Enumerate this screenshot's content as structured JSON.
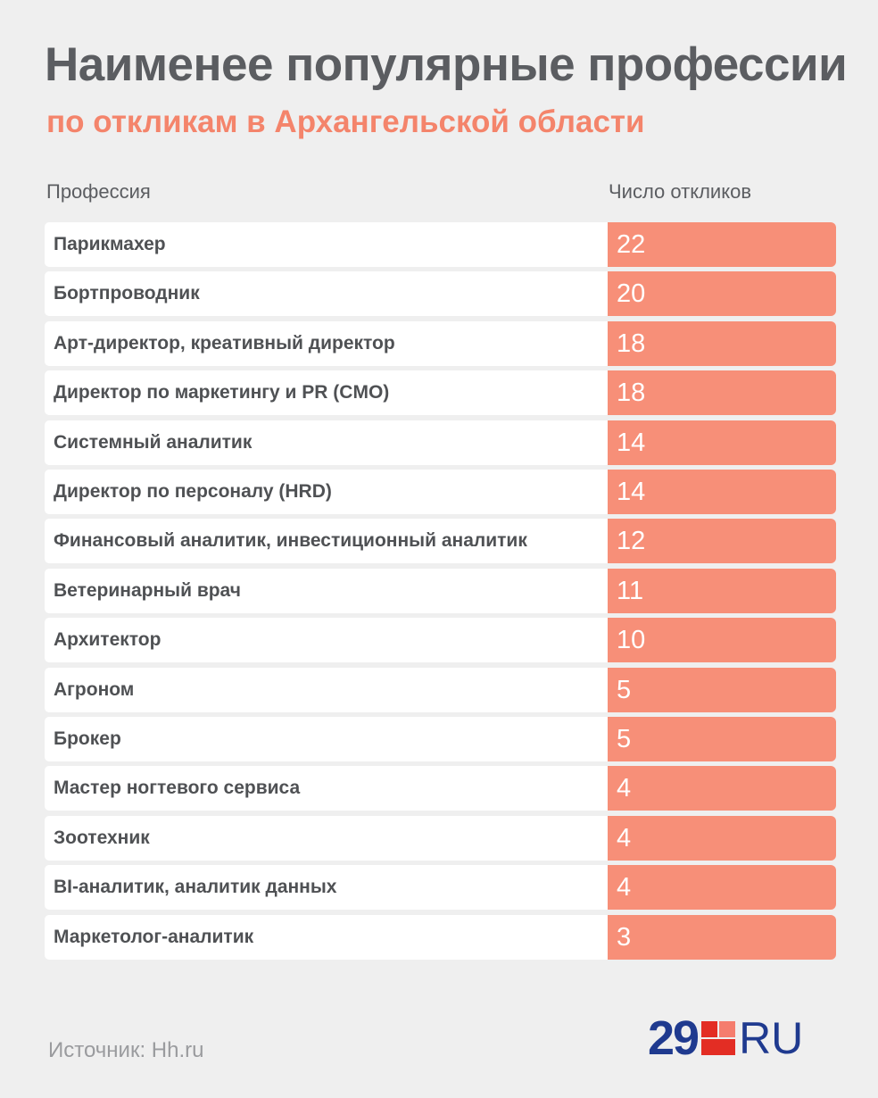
{
  "chart_data": {
    "type": "table",
    "title": "Наименее популярные профессии",
    "subtitle": "по откликам в Архангельской области",
    "columns": [
      "Профессия",
      "Число откликов"
    ],
    "rows": [
      {
        "label": "Парикмахер",
        "value": 22
      },
      {
        "label": "Бортпроводник",
        "value": 20
      },
      {
        "label": "Арт-директор, креативный директор",
        "value": 18
      },
      {
        "label": "Директор по маркетингу и PR (CMO)",
        "value": 18
      },
      {
        "label": "Системный аналитик",
        "value": 14
      },
      {
        "label": "Директор по персоналу (HRD)",
        "value": 14
      },
      {
        "label": "Финансовый аналитик, инвестиционный аналитик",
        "value": 12
      },
      {
        "label": "Ветеринарный врач",
        "value": 11
      },
      {
        "label": "Архитектор",
        "value": 10
      },
      {
        "label": "Агроном",
        "value": 5
      },
      {
        "label": "Брокер",
        "value": 5
      },
      {
        "label": "Мастер ногтевого сервиса",
        "value": 4
      },
      {
        "label": "Зоотехник",
        "value": 4
      },
      {
        "label": "BI-аналитик, аналитик данных",
        "value": 4
      },
      {
        "label": "Маркетолог-аналитик",
        "value": 3
      }
    ]
  },
  "footer": {
    "source": "Источник: Hh.ru",
    "logo_number": "29",
    "logo_suffix": "RU"
  },
  "colors": {
    "title": "#5b5d61",
    "subtitle": "#f4846b",
    "value_bar": "#f78f78",
    "logo": "#1f3a8f"
  }
}
